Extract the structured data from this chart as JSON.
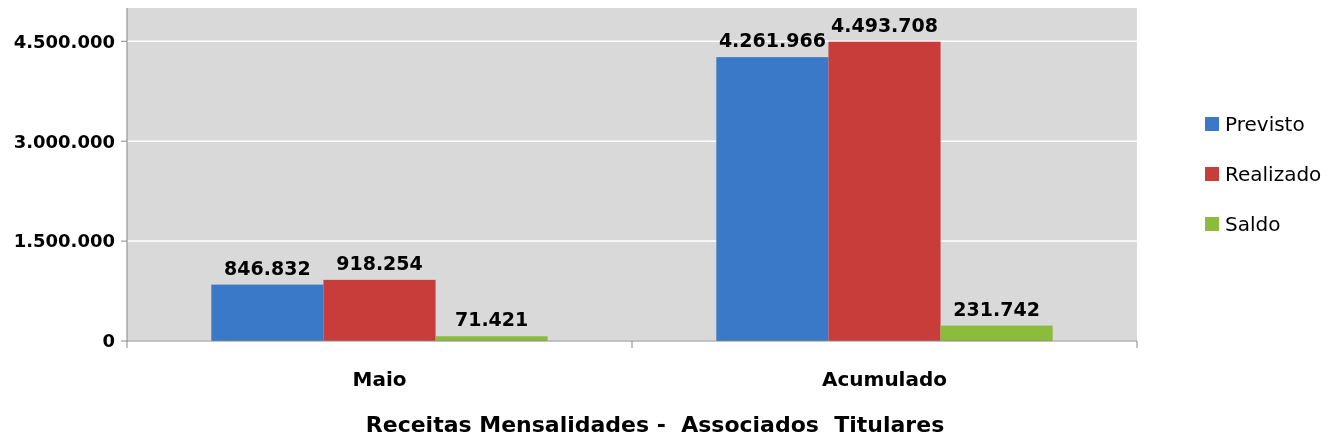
{
  "chart_data": {
    "type": "bar",
    "xlabel": "Receitas Mensalidades -  Associados  Titulares",
    "categories": [
      "Maio",
      "Acumulado"
    ],
    "series": [
      {
        "name": "Previsto",
        "color": "#3a78c8",
        "values": [
          846832,
          4261966
        ],
        "value_labels": [
          "846.832",
          "4.261.966"
        ]
      },
      {
        "name": "Realizado",
        "color": "#c83c3a",
        "values": [
          918254,
          4493708
        ],
        "value_labels": [
          "918.254",
          "4.493.708"
        ]
      },
      {
        "name": "Saldo",
        "color": "#8cbc3c",
        "values": [
          71421,
          231742
        ],
        "value_labels": [
          "71.421",
          "231.742"
        ]
      }
    ],
    "ylim": [
      0,
      5000000
    ],
    "yticks": [
      0,
      {
        "value": 1500000,
        "label": "1.500.000"
      },
      {
        "value": 3000000,
        "label": "3.000.000"
      },
      {
        "value": 4500000,
        "label": "4.500.000"
      }
    ],
    "grid": "y",
    "legend": "right"
  }
}
